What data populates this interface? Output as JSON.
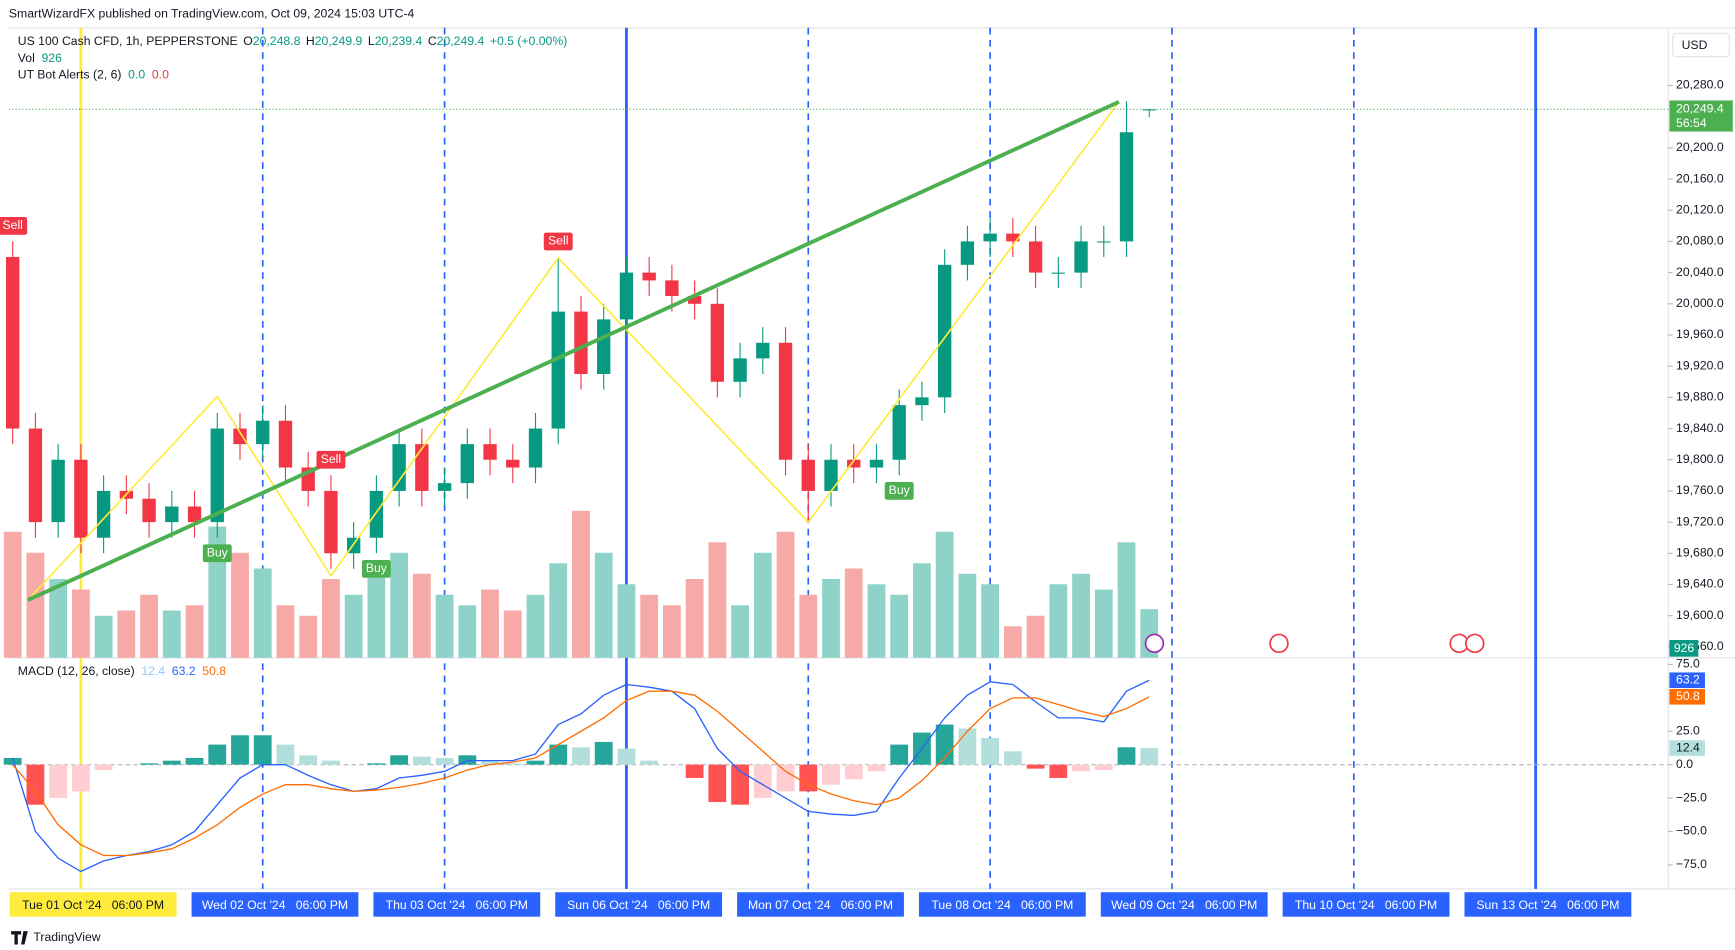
{
  "header": {
    "publisher": "SmartWizardFX published on TradingView.com, Oct 09, 2024 15:03 UTC-4",
    "footer": "TradingView",
    "currency": "USD"
  },
  "legend": {
    "symbol": "US 100 Cash CFD, 1h, PEPPERSTONE",
    "ohlc": [
      [
        "O",
        "20,248.8"
      ],
      [
        "H",
        "20,249.9"
      ],
      [
        "L",
        "20,239.4"
      ],
      [
        "C",
        "20,249.4"
      ]
    ],
    "change": "+0.5 (+0.00%)",
    "volume_title": "Vol",
    "indicator": "UT Bot Alerts (2, 6)",
    "indicator_values": [
      "0.0",
      "0.0"
    ]
  },
  "chart_data": [
    {
      "type": "candlestick",
      "x": [
        -9,
        -6,
        -3,
        0,
        3,
        6,
        9,
        12,
        15,
        18,
        21,
        24,
        27,
        30,
        33,
        36,
        39,
        42,
        45,
        48,
        51,
        54,
        57,
        60,
        63,
        66,
        69,
        72,
        75,
        78,
        81,
        84,
        87,
        90,
        93,
        96,
        99,
        102,
        105,
        108,
        111,
        114,
        117,
        120,
        123,
        126,
        129,
        132,
        135,
        138,
        141
      ],
      "open": [
        20060,
        19840,
        19720,
        19800,
        19700,
        19760,
        19750,
        19720,
        19740,
        19720,
        19840,
        19820,
        19850,
        19790,
        19760,
        19680,
        19700,
        19760,
        19820,
        19760,
        19770,
        19820,
        19800,
        19790,
        19840,
        19990,
        19910,
        19980,
        20040,
        20030,
        20010,
        20000,
        19900,
        19930,
        19950,
        19800,
        19760,
        19800,
        19790,
        19800,
        19870,
        19880,
        20050,
        20080,
        20090,
        20080,
        20040,
        20040,
        20080,
        20080,
        20248.8
      ],
      "high": [
        20080,
        19860,
        19820,
        19820,
        19780,
        19780,
        19770,
        19760,
        19760,
        19860,
        19860,
        19870,
        19870,
        19810,
        19780,
        19720,
        19780,
        19840,
        19840,
        19790,
        19840,
        19840,
        19820,
        19860,
        20060,
        20010,
        20000,
        20060,
        20060,
        20050,
        20030,
        20020,
        19950,
        19970,
        19970,
        19820,
        19820,
        19820,
        19820,
        19890,
        19900,
        20070,
        20100,
        20110,
        20110,
        20100,
        20060,
        20100,
        20100,
        20260,
        20249.9
      ],
      "low": [
        19820,
        19700,
        19700,
        19680,
        19680,
        19730,
        19700,
        19700,
        19700,
        19700,
        19800,
        19800,
        19770,
        19740,
        19660,
        19660,
        19680,
        19740,
        19740,
        19740,
        19750,
        19780,
        19770,
        19770,
        19820,
        19890,
        19890,
        19960,
        20010,
        19990,
        19980,
        19880,
        19880,
        19910,
        19780,
        19720,
        19740,
        19770,
        19770,
        19780,
        19850,
        19860,
        20030,
        20060,
        20060,
        20020,
        20020,
        20020,
        20060,
        20060,
        20239.4
      ],
      "close": [
        19840,
        19720,
        19800,
        19700,
        19760,
        19750,
        19720,
        19740,
        19720,
        19840,
        19820,
        19850,
        19790,
        19760,
        19680,
        19700,
        19760,
        19820,
        19760,
        19770,
        19820,
        19800,
        19790,
        19840,
        19990,
        19910,
        19980,
        20040,
        20030,
        20010,
        20000,
        19900,
        19930,
        19950,
        19800,
        19760,
        19800,
        19790,
        19800,
        19870,
        19880,
        20050,
        20080,
        20090,
        20080,
        20040,
        20040,
        20080,
        20080,
        20220,
        20249.4
      ],
      "volume": [
        2400,
        2000,
        1500,
        1300,
        800,
        900,
        1200,
        900,
        1000,
        2500,
        2000,
        1700,
        1000,
        800,
        1500,
        1200,
        1800,
        2000,
        1600,
        1200,
        1000,
        1300,
        900,
        1200,
        1800,
        2800,
        2000,
        1400,
        1200,
        1000,
        1500,
        2200,
        1000,
        2000,
        2400,
        1200,
        1500,
        1700,
        1400,
        1200,
        1800,
        2400,
        1600,
        1400,
        600,
        800,
        1400,
        1600,
        1300,
        2200,
        926
      ],
      "volume_lim": [
        0,
        12000
      ],
      "up_color": "#089981",
      "down_color": "#f23645",
      "volume_up_color": "#8fd3c8",
      "volume_down_color": "#f7a9a7",
      "xlim": [
        -9.5,
        209.5
      ],
      "xticks": [
        {
          "value": 0,
          "label": "Tue 01 Oct '24   06:00 PM"
        },
        {
          "value": 24,
          "label": "Wed 02 Oct '24   06:00 PM"
        },
        {
          "value": 48,
          "label": "Thu 03 Oct '24   06:00 PM"
        },
        {
          "value": 72,
          "label": "Sun 06 Oct '24   06:00 PM"
        },
        {
          "value": 96,
          "label": "Mon 07 Oct '24   06:00 PM"
        },
        {
          "value": 120,
          "label": "Tue 08 Oct '24   06:00 PM"
        },
        {
          "value": 144,
          "label": "Wed 09 Oct '24   06:00 PM"
        },
        {
          "value": 168,
          "label": "Thu 10 Oct '24   06:00 PM"
        },
        {
          "value": 192,
          "label": "Sun 13 Oct '24   06:00 PM"
        }
      ],
      "xtick_styles": [
        "highlight",
        "dashed",
        "dashed",
        "solid",
        "dashed",
        "dashed",
        "dashed",
        "dashed",
        "solid"
      ],
      "line_color": "#2962ff",
      "highlight_color": "#ffeb3b",
      "ylim": [
        19546,
        20354
      ],
      "yticks": [
        {
          "value": 19560,
          "label": "19,560.0"
        },
        {
          "value": 19600,
          "label": "19,600.0"
        },
        {
          "value": 19640,
          "label": "19,640.0"
        },
        {
          "value": 19680,
          "label": "19,680.0"
        },
        {
          "value": 19720,
          "label": "19,720.0"
        },
        {
          "value": 19760,
          "label": "19,760.0"
        },
        {
          "value": 19800,
          "label": "19,800.0"
        },
        {
          "value": 19840,
          "label": "19,840.0"
        },
        {
          "value": 19880,
          "label": "19,880.0"
        },
        {
          "value": 19920,
          "label": "19,920.0"
        },
        {
          "value": 19960,
          "label": "19,960.0"
        },
        {
          "value": 20000,
          "label": "20,000.0"
        },
        {
          "value": 20040,
          "label": "20,040.0"
        },
        {
          "value": 20080,
          "label": "20,080.0"
        },
        {
          "value": 20120,
          "label": "20,120.0"
        },
        {
          "value": 20160,
          "label": "20,160.0"
        },
        {
          "value": 20200,
          "label": "20,200.0"
        },
        {
          "value": 20280,
          "label": "20,280.0"
        }
      ],
      "zigzag": {
        "x": [
          -7,
          18,
          33,
          63,
          96,
          137
        ],
        "values": [
          19620,
          19881,
          19651,
          20059,
          19720,
          20259
        ],
        "color": "#ffeb3b"
      },
      "trendline": {
        "x": [
          -7,
          137
        ],
        "values": [
          19620,
          20259
        ],
        "color": "#4caf50"
      },
      "signals": [
        {
          "x": -9,
          "label": "Sell"
        },
        {
          "x": 18,
          "label": "Buy"
        },
        {
          "x": 33,
          "label": "Sell"
        },
        {
          "x": 39,
          "label": "Buy"
        },
        {
          "x": 63,
          "label": "Sell"
        },
        {
          "x": 108,
          "label": "Buy"
        }
      ],
      "sell_color": "#f23645",
      "buy_color": "#4caf50",
      "last_price": {
        "value": 20249.4,
        "label": "20,249.4",
        "countdown": "56:54",
        "color": "#4caf50"
      }
    },
    {
      "type": "macd",
      "title": "MACD (12, 26, close)",
      "x": [
        -9,
        -6,
        -3,
        0,
        3,
        6,
        9,
        12,
        15,
        18,
        21,
        24,
        27,
        30,
        33,
        36,
        39,
        42,
        45,
        48,
        51,
        54,
        57,
        60,
        63,
        66,
        69,
        72,
        75,
        78,
        81,
        84,
        87,
        90,
        93,
        96,
        99,
        102,
        105,
        108,
        111,
        114,
        117,
        120,
        123,
        126,
        129,
        132,
        135,
        138,
        141
      ],
      "histogram": {
        "values": [
          5,
          -30,
          -25,
          -20,
          -4,
          0,
          1,
          3,
          5,
          15,
          22,
          22,
          15,
          7,
          3,
          0,
          1,
          7,
          6,
          5,
          7,
          3,
          1,
          3,
          15,
          13,
          17,
          12,
          3,
          0,
          -10,
          -28,
          -30,
          -25,
          -20,
          -20,
          -15,
          -11,
          -5,
          15,
          24,
          30,
          27,
          20,
          10,
          -3,
          -10,
          -5,
          -4,
          13,
          12.4
        ],
        "colors": [
          "#26a69a",
          "#b2dfdb",
          "#ffcdd2",
          "#ff5252"
        ],
        "color": "#b2dfdb"
      },
      "macd": {
        "values": [
          5,
          -50,
          -70,
          -80,
          -72,
          -68,
          -65,
          -60,
          -50,
          -30,
          -10,
          0,
          0,
          -8,
          -15,
          -20,
          -18,
          -10,
          -8,
          -5,
          3,
          3,
          3,
          8,
          30,
          38,
          52,
          60,
          58,
          55,
          42,
          12,
          -5,
          -15,
          -25,
          -35,
          -37,
          -38,
          -35,
          -10,
          12,
          35,
          52,
          62,
          60,
          47,
          35,
          35,
          32,
          55,
          63.2
        ],
        "color": "#2962ff"
      },
      "signal": {
        "values": [
          0,
          -20,
          -45,
          -60,
          -68,
          -68,
          -66,
          -63,
          -55,
          -45,
          -32,
          -22,
          -15,
          -15,
          -18,
          -20,
          -19,
          -17,
          -14,
          -10,
          -4,
          0,
          2,
          5,
          15,
          25,
          35,
          48,
          55,
          55,
          52,
          40,
          25,
          10,
          -5,
          -15,
          -22,
          -27,
          -30,
          -25,
          -12,
          5,
          25,
          42,
          50,
          50,
          45,
          40,
          36,
          42,
          50.8
        ],
        "color": "#ff6d00"
      },
      "ylim": [
        -93,
        80
      ],
      "yticks": [
        {
          "value": 75,
          "label": "75.0"
        },
        {
          "value": 25,
          "label": "25.0"
        },
        {
          "value": 0,
          "label": "0.0"
        },
        {
          "value": -25,
          "label": "−25.0"
        },
        {
          "value": -50,
          "label": "−50.0"
        },
        {
          "value": -75,
          "label": "−75.0"
        }
      ],
      "zero_line": true
    }
  ]
}
